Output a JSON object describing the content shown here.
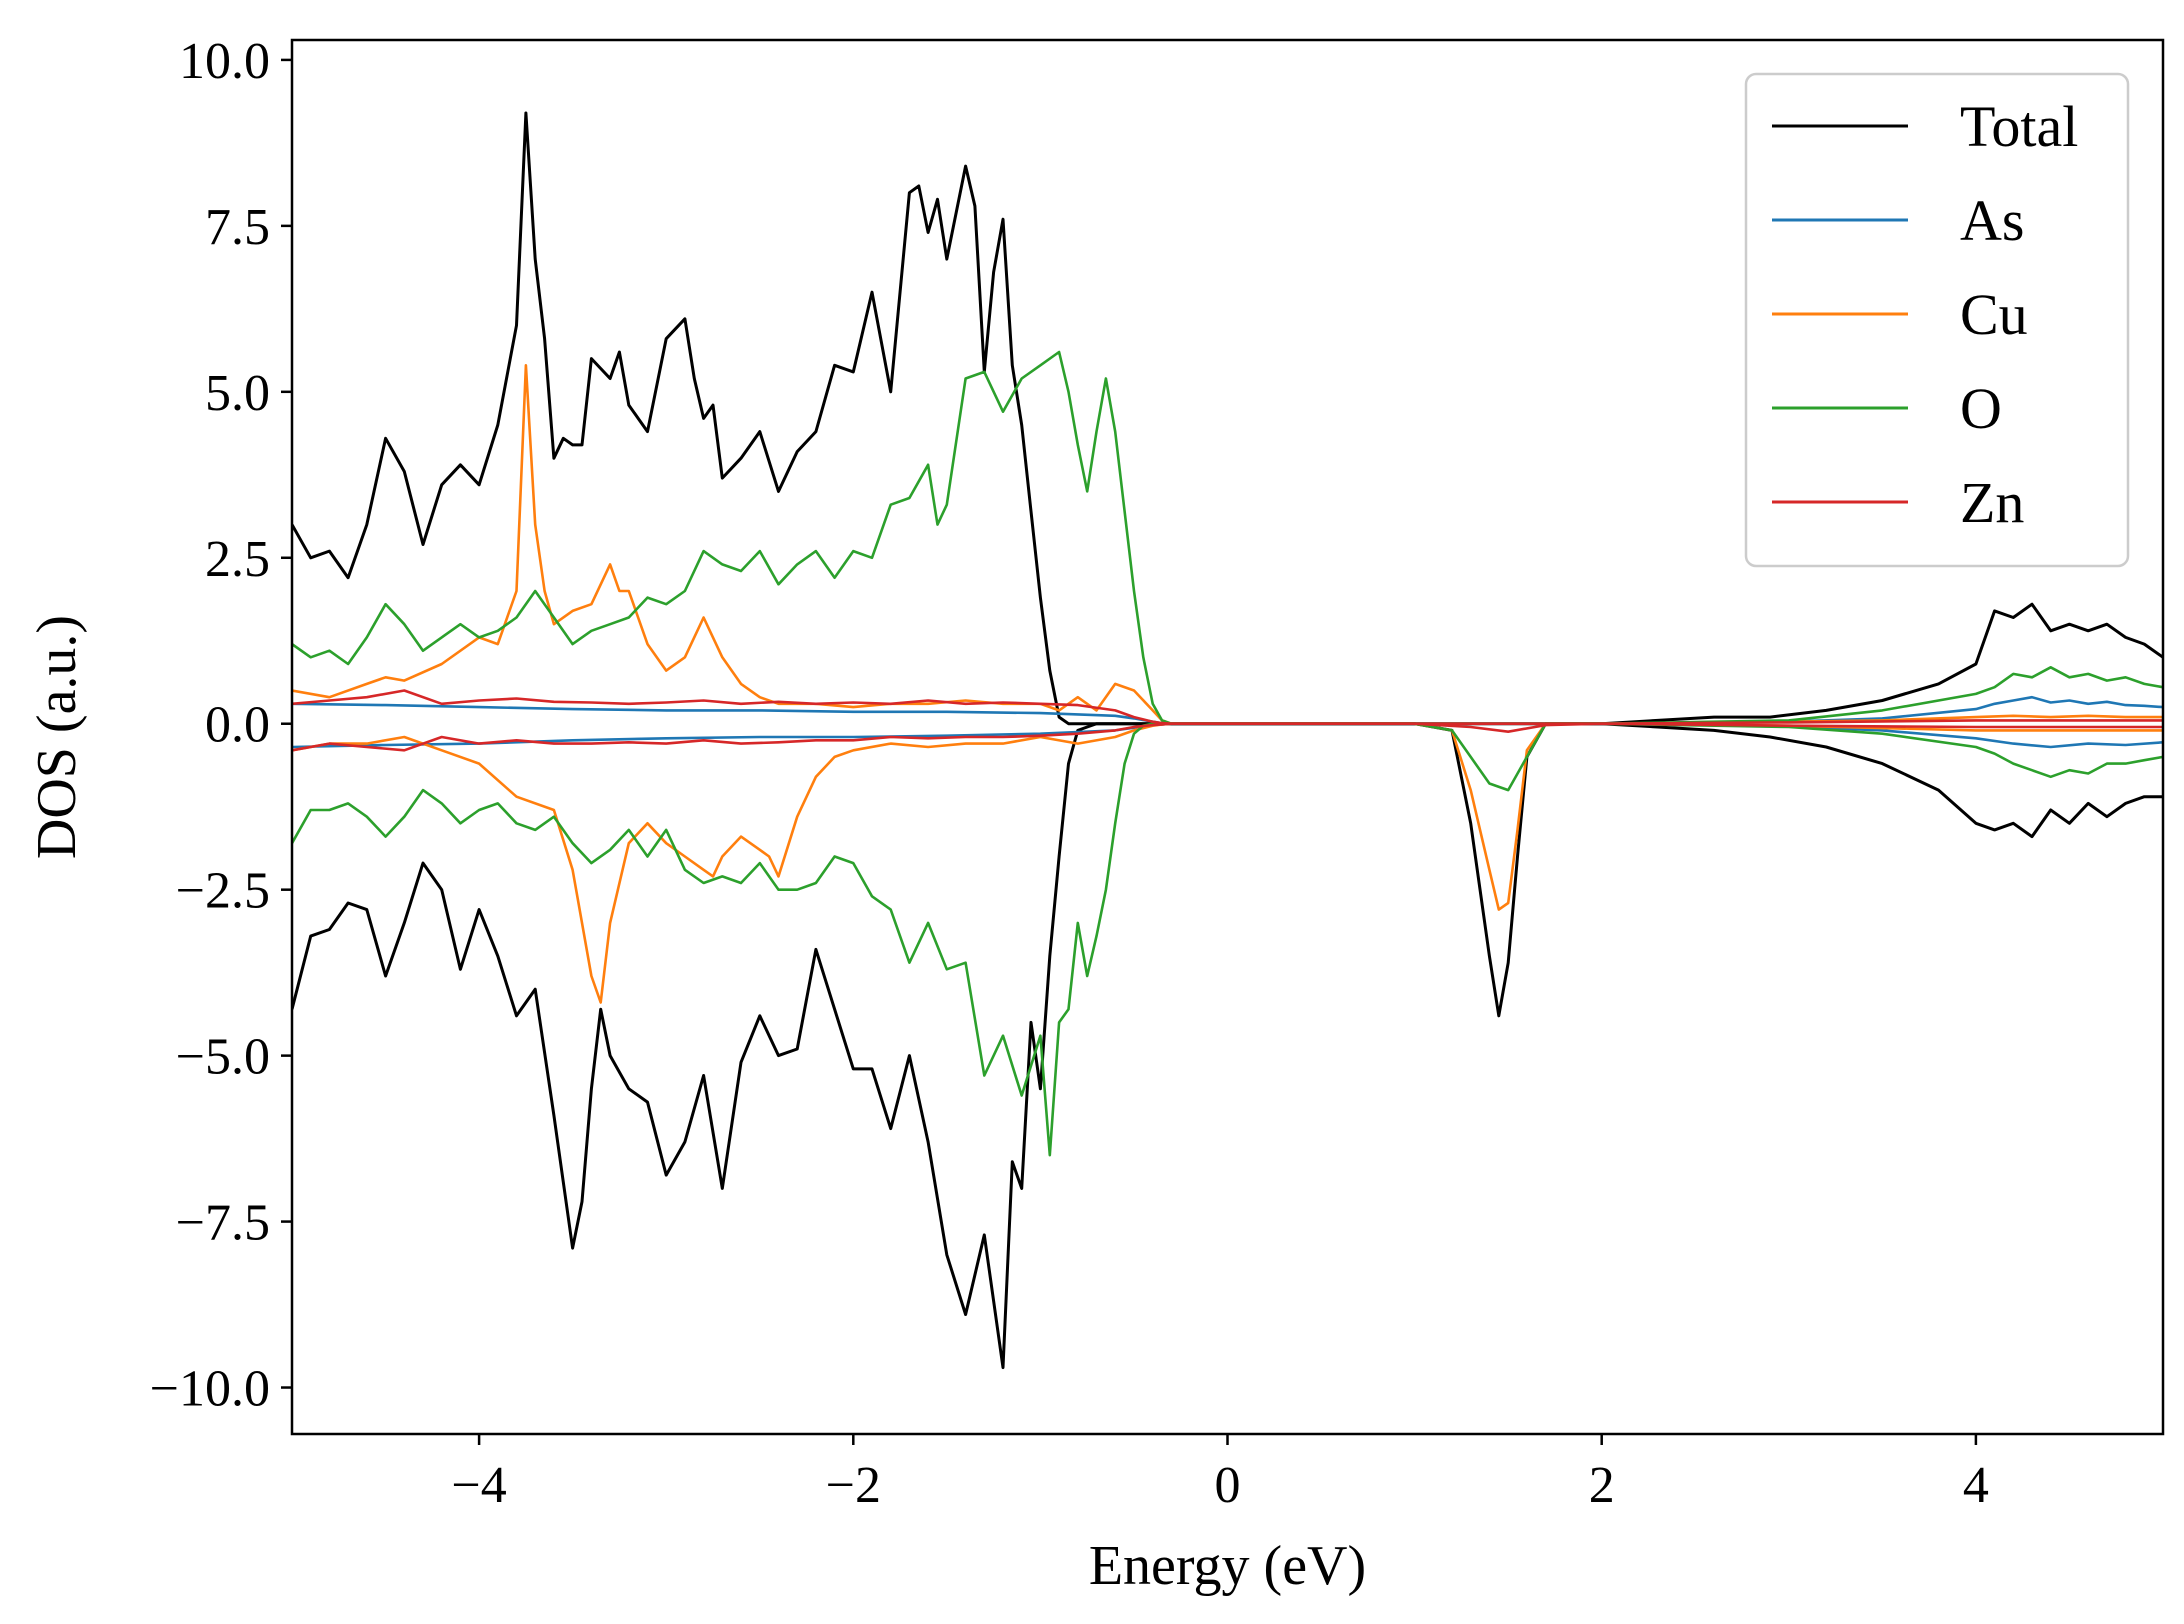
{
  "chart_data": {
    "type": "line",
    "title": "",
    "xlabel": "Energy (eV)",
    "ylabel": "DOS (a.u.)",
    "xlim": [
      -5,
      5
    ],
    "ylim": [
      -10.7,
      10.3
    ],
    "xticks": [
      -4,
      -2,
      0,
      2,
      4
    ],
    "xtick_labels": [
      "−4",
      "−2",
      "0",
      "2",
      "4"
    ],
    "yticks": [
      -10,
      -7.5,
      -5,
      -2.5,
      0,
      2.5,
      5,
      7.5,
      10
    ],
    "ytick_labels": [
      "−10.0",
      "−7.5",
      "−5.0",
      "−2.5",
      "0.0",
      "2.5",
      "5.0",
      "7.5",
      "10.0"
    ],
    "grid": false,
    "legend_position": "top-right",
    "colors": {
      "Total": "#000000",
      "As": "#1f77b4",
      "Cu": "#ff7f0e",
      "O": "#2ca02c",
      "Zn": "#d62728"
    },
    "series": [
      {
        "name": "Total",
        "spin": "up",
        "x": [
          -5.0,
          -4.9,
          -4.8,
          -4.7,
          -4.6,
          -4.5,
          -4.4,
          -4.3,
          -4.2,
          -4.1,
          -4.0,
          -3.9,
          -3.8,
          -3.75,
          -3.7,
          -3.65,
          -3.6,
          -3.55,
          -3.5,
          -3.45,
          -3.4,
          -3.3,
          -3.25,
          -3.2,
          -3.1,
          -3.0,
          -2.9,
          -2.85,
          -2.8,
          -2.75,
          -2.7,
          -2.6,
          -2.5,
          -2.4,
          -2.3,
          -2.2,
          -2.1,
          -2.0,
          -1.9,
          -1.8,
          -1.7,
          -1.65,
          -1.6,
          -1.55,
          -1.5,
          -1.45,
          -1.4,
          -1.35,
          -1.3,
          -1.25,
          -1.2,
          -1.15,
          -1.1,
          -1.05,
          -1.0,
          -0.95,
          -0.9,
          -0.85,
          -0.8,
          -0.75,
          -0.7,
          -0.65,
          -0.6,
          -0.55,
          -0.5,
          -0.45,
          -0.4,
          -0.35,
          -0.3,
          -0.25,
          -0.2,
          0.0,
          1.0,
          2.0,
          2.3,
          2.6,
          2.9,
          3.2,
          3.5,
          3.8,
          4.0,
          4.1,
          4.2,
          4.3,
          4.4,
          4.5,
          4.6,
          4.7,
          4.8,
          4.9,
          5.0
        ],
        "y": [
          3.0,
          2.5,
          2.6,
          2.2,
          3.0,
          4.3,
          3.8,
          2.7,
          3.6,
          3.9,
          3.6,
          4.5,
          6.0,
          9.2,
          7.0,
          5.8,
          4.0,
          4.3,
          4.2,
          4.2,
          5.5,
          5.2,
          5.6,
          4.8,
          4.4,
          5.8,
          6.1,
          5.2,
          4.6,
          4.8,
          3.7,
          4.0,
          4.4,
          3.5,
          4.1,
          4.4,
          5.4,
          5.3,
          6.5,
          5.0,
          8.0,
          8.1,
          7.4,
          7.9,
          7.0,
          7.7,
          8.4,
          7.8,
          5.3,
          6.8,
          7.6,
          5.4,
          4.5,
          3.2,
          1.9,
          0.8,
          0.1,
          0.0,
          0.0,
          0.0,
          0.0,
          0.0,
          0.0,
          0.0,
          0.0,
          0.0,
          0.0,
          0.0,
          0.0,
          0.0,
          0.0,
          0.0,
          0.0,
          0.0,
          0.05,
          0.1,
          0.1,
          0.2,
          0.35,
          0.6,
          0.9,
          1.7,
          1.6,
          1.8,
          1.4,
          1.5,
          1.4,
          1.5,
          1.3,
          1.2,
          1.0
        ]
      },
      {
        "name": "Total",
        "spin": "down",
        "x": [
          -5.0,
          -4.9,
          -4.8,
          -4.7,
          -4.6,
          -4.5,
          -4.4,
          -4.3,
          -4.2,
          -4.1,
          -4.0,
          -3.9,
          -3.8,
          -3.7,
          -3.6,
          -3.5,
          -3.45,
          -3.4,
          -3.35,
          -3.3,
          -3.2,
          -3.1,
          -3.0,
          -2.9,
          -2.8,
          -2.7,
          -2.6,
          -2.5,
          -2.4,
          -2.3,
          -2.2,
          -2.1,
          -2.0,
          -1.9,
          -1.8,
          -1.7,
          -1.6,
          -1.5,
          -1.4,
          -1.3,
          -1.2,
          -1.15,
          -1.1,
          -1.05,
          -1.0,
          -0.95,
          -0.9,
          -0.85,
          -0.8,
          -0.75,
          -0.7,
          -0.65,
          -0.6,
          -0.55,
          -0.5,
          -0.45,
          -0.4,
          -0.35,
          -0.3,
          -0.25,
          -0.2,
          0.0,
          1.0,
          1.2,
          1.3,
          1.4,
          1.45,
          1.5,
          1.55,
          1.6,
          1.7,
          2.0,
          2.3,
          2.6,
          2.9,
          3.2,
          3.5,
          3.8,
          4.0,
          4.1,
          4.2,
          4.3,
          4.4,
          4.5,
          4.6,
          4.7,
          4.8,
          4.9,
          5.0
        ],
        "y": [
          -4.3,
          -3.2,
          -3.1,
          -2.7,
          -2.8,
          -3.8,
          -3.0,
          -2.1,
          -2.5,
          -3.7,
          -2.8,
          -3.5,
          -4.4,
          -4.0,
          -5.9,
          -7.9,
          -7.2,
          -5.5,
          -4.3,
          -5.0,
          -5.5,
          -5.7,
          -6.8,
          -6.3,
          -5.3,
          -7.0,
          -5.1,
          -4.4,
          -5.0,
          -4.9,
          -3.4,
          -4.3,
          -5.2,
          -5.2,
          -6.1,
          -5.0,
          -6.3,
          -8.0,
          -8.9,
          -7.7,
          -9.7,
          -6.6,
          -7.0,
          -4.5,
          -5.5,
          -3.5,
          -2.0,
          -0.6,
          -0.1,
          -0.05,
          0.0,
          0.0,
          0.0,
          0.0,
          0.0,
          0.0,
          0.0,
          0.0,
          0.0,
          0.0,
          0.0,
          0.0,
          0.0,
          -0.1,
          -1.5,
          -3.5,
          -4.4,
          -3.6,
          -2.0,
          -0.5,
          0.0,
          0.0,
          -0.05,
          -0.1,
          -0.2,
          -0.35,
          -0.6,
          -1.0,
          -1.5,
          -1.6,
          -1.5,
          -1.7,
          -1.3,
          -1.5,
          -1.2,
          -1.4,
          -1.2,
          -1.1,
          -1.1
        ]
      },
      {
        "name": "As",
        "spin": "up",
        "x": [
          -5.0,
          -4.5,
          -4.0,
          -3.5,
          -3.0,
          -2.5,
          -2.0,
          -1.5,
          -1.0,
          -0.6,
          -0.5,
          -0.4,
          -0.35,
          -0.3,
          0.0,
          1.0,
          2.0,
          3.0,
          3.5,
          4.0,
          4.1,
          4.2,
          4.3,
          4.4,
          4.5,
          4.6,
          4.7,
          4.8,
          4.9,
          5.0
        ],
        "y": [
          0.3,
          0.28,
          0.25,
          0.22,
          0.2,
          0.2,
          0.18,
          0.18,
          0.16,
          0.12,
          0.08,
          0.03,
          0.01,
          0.0,
          0.0,
          0.0,
          0.0,
          0.03,
          0.08,
          0.22,
          0.3,
          0.35,
          0.4,
          0.32,
          0.35,
          0.3,
          0.33,
          0.28,
          0.27,
          0.25
        ]
      },
      {
        "name": "As",
        "spin": "down",
        "x": [
          -5.0,
          -4.5,
          -4.0,
          -3.5,
          -3.0,
          -2.5,
          -2.0,
          -1.5,
          -1.0,
          -0.6,
          -0.5,
          -0.4,
          -0.35,
          -0.3,
          0.0,
          1.0,
          2.0,
          3.0,
          3.5,
          4.0,
          4.2,
          4.4,
          4.6,
          4.8,
          5.0
        ],
        "y": [
          -0.35,
          -0.32,
          -0.3,
          -0.25,
          -0.22,
          -0.2,
          -0.2,
          -0.18,
          -0.15,
          -0.1,
          -0.06,
          -0.02,
          -0.01,
          0.0,
          0.0,
          0.0,
          0.0,
          -0.04,
          -0.1,
          -0.22,
          -0.3,
          -0.35,
          -0.3,
          -0.32,
          -0.28
        ]
      },
      {
        "name": "Cu",
        "spin": "up",
        "x": [
          -5.0,
          -4.8,
          -4.6,
          -4.5,
          -4.4,
          -4.2,
          -4.0,
          -3.9,
          -3.8,
          -3.75,
          -3.7,
          -3.65,
          -3.6,
          -3.5,
          -3.4,
          -3.3,
          -3.25,
          -3.2,
          -3.1,
          -3.0,
          -2.9,
          -2.8,
          -2.7,
          -2.6,
          -2.5,
          -2.4,
          -2.2,
          -2.0,
          -1.8,
          -1.6,
          -1.4,
          -1.2,
          -1.0,
          -0.9,
          -0.8,
          -0.7,
          -0.6,
          -0.5,
          -0.4,
          -0.35,
          -0.3,
          0.0,
          1.0,
          2.0,
          3.0,
          3.5,
          4.0,
          4.2,
          4.4,
          4.6,
          4.8,
          5.0
        ],
        "y": [
          0.5,
          0.4,
          0.6,
          0.7,
          0.65,
          0.9,
          1.3,
          1.2,
          2.0,
          5.4,
          3.0,
          2.0,
          1.5,
          1.7,
          1.8,
          2.4,
          2.0,
          2.0,
          1.2,
          0.8,
          1.0,
          1.6,
          1.0,
          0.6,
          0.4,
          0.3,
          0.3,
          0.25,
          0.3,
          0.3,
          0.35,
          0.3,
          0.3,
          0.2,
          0.4,
          0.2,
          0.6,
          0.5,
          0.2,
          0.05,
          0.0,
          0.0,
          0.0,
          0.0,
          0.03,
          0.05,
          0.1,
          0.12,
          0.1,
          0.12,
          0.1,
          0.1
        ]
      },
      {
        "name": "Cu",
        "spin": "down",
        "x": [
          -5.0,
          -4.8,
          -4.6,
          -4.4,
          -4.2,
          -4.0,
          -3.8,
          -3.6,
          -3.5,
          -3.4,
          -3.35,
          -3.3,
          -3.2,
          -3.1,
          -3.0,
          -2.9,
          -2.8,
          -2.75,
          -2.7,
          -2.6,
          -2.5,
          -2.45,
          -2.4,
          -2.3,
          -2.2,
          -2.1,
          -2.0,
          -1.8,
          -1.6,
          -1.4,
          -1.2,
          -1.0,
          -0.8,
          -0.6,
          -0.5,
          -0.4,
          -0.35,
          -0.3,
          0.0,
          1.0,
          1.2,
          1.3,
          1.4,
          1.45,
          1.5,
          1.55,
          1.6,
          1.7,
          2.0,
          3.0,
          4.0,
          4.5,
          5.0
        ],
        "y": [
          -0.4,
          -0.3,
          -0.3,
          -0.2,
          -0.4,
          -0.6,
          -1.1,
          -1.3,
          -2.2,
          -3.8,
          -4.2,
          -3.0,
          -1.8,
          -1.5,
          -1.8,
          -2.0,
          -2.2,
          -2.3,
          -2.0,
          -1.7,
          -1.9,
          -2.0,
          -2.3,
          -1.4,
          -0.8,
          -0.5,
          -0.4,
          -0.3,
          -0.35,
          -0.3,
          -0.3,
          -0.2,
          -0.3,
          -0.2,
          -0.1,
          -0.03,
          -0.01,
          0.0,
          0.0,
          0.0,
          -0.1,
          -1.0,
          -2.2,
          -2.8,
          -2.7,
          -1.6,
          -0.4,
          0.0,
          0.0,
          -0.03,
          -0.1,
          -0.1,
          -0.1
        ]
      },
      {
        "name": "O",
        "spin": "up",
        "x": [
          -5.0,
          -4.9,
          -4.8,
          -4.7,
          -4.6,
          -4.5,
          -4.4,
          -4.3,
          -4.2,
          -4.1,
          -4.0,
          -3.9,
          -3.8,
          -3.7,
          -3.6,
          -3.5,
          -3.4,
          -3.3,
          -3.2,
          -3.1,
          -3.0,
          -2.9,
          -2.8,
          -2.7,
          -2.6,
          -2.5,
          -2.4,
          -2.3,
          -2.2,
          -2.1,
          -2.0,
          -1.9,
          -1.8,
          -1.7,
          -1.6,
          -1.55,
          -1.5,
          -1.4,
          -1.3,
          -1.2,
          -1.1,
          -1.0,
          -0.9,
          -0.85,
          -0.8,
          -0.75,
          -0.7,
          -0.65,
          -0.6,
          -0.55,
          -0.5,
          -0.45,
          -0.4,
          -0.35,
          -0.3,
          -0.25,
          -0.2,
          0.0,
          1.0,
          2.0,
          3.0,
          3.5,
          4.0,
          4.1,
          4.2,
          4.3,
          4.4,
          4.5,
          4.6,
          4.7,
          4.8,
          4.9,
          5.0
        ],
        "y": [
          1.2,
          1.0,
          1.1,
          0.9,
          1.3,
          1.8,
          1.5,
          1.1,
          1.3,
          1.5,
          1.3,
          1.4,
          1.6,
          2.0,
          1.6,
          1.2,
          1.4,
          1.5,
          1.6,
          1.9,
          1.8,
          2.0,
          2.6,
          2.4,
          2.3,
          2.6,
          2.1,
          2.4,
          2.6,
          2.2,
          2.6,
          2.5,
          3.3,
          3.4,
          3.9,
          3.0,
          3.3,
          5.2,
          5.3,
          4.7,
          5.2,
          5.4,
          5.6,
          5.0,
          4.2,
          3.5,
          4.4,
          5.2,
          4.4,
          3.2,
          2.0,
          1.0,
          0.3,
          0.05,
          0.0,
          0.0,
          0.0,
          0.0,
          0.0,
          0.0,
          0.05,
          0.2,
          0.45,
          0.55,
          0.75,
          0.7,
          0.85,
          0.7,
          0.75,
          0.65,
          0.7,
          0.6,
          0.55
        ]
      },
      {
        "name": "O",
        "spin": "down",
        "x": [
          -5.0,
          -4.9,
          -4.8,
          -4.7,
          -4.6,
          -4.5,
          -4.4,
          -4.3,
          -4.2,
          -4.1,
          -4.0,
          -3.9,
          -3.8,
          -3.7,
          -3.6,
          -3.5,
          -3.4,
          -3.3,
          -3.2,
          -3.1,
          -3.0,
          -2.9,
          -2.8,
          -2.7,
          -2.6,
          -2.5,
          -2.4,
          -2.3,
          -2.2,
          -2.1,
          -2.0,
          -1.9,
          -1.8,
          -1.7,
          -1.6,
          -1.5,
          -1.4,
          -1.3,
          -1.2,
          -1.1,
          -1.0,
          -0.95,
          -0.9,
          -0.85,
          -0.8,
          -0.75,
          -0.7,
          -0.65,
          -0.6,
          -0.55,
          -0.5,
          -0.45,
          -0.4,
          -0.35,
          -0.3,
          -0.25,
          -0.2,
          0.0,
          1.0,
          1.2,
          1.3,
          1.4,
          1.5,
          1.6,
          1.7,
          2.0,
          3.0,
          3.5,
          4.0,
          4.1,
          4.2,
          4.3,
          4.4,
          4.5,
          4.6,
          4.7,
          4.8,
          4.9,
          5.0
        ],
        "y": [
          -1.8,
          -1.3,
          -1.3,
          -1.2,
          -1.4,
          -1.7,
          -1.4,
          -1.0,
          -1.2,
          -1.5,
          -1.3,
          -1.2,
          -1.5,
          -1.6,
          -1.4,
          -1.8,
          -2.1,
          -1.9,
          -1.6,
          -2.0,
          -1.6,
          -2.2,
          -2.4,
          -2.3,
          -2.4,
          -2.1,
          -2.5,
          -2.5,
          -2.4,
          -2.0,
          -2.1,
          -2.6,
          -2.8,
          -3.6,
          -3.0,
          -3.7,
          -3.6,
          -5.3,
          -4.7,
          -5.6,
          -4.7,
          -6.5,
          -4.5,
          -4.3,
          -3.0,
          -3.8,
          -3.2,
          -2.5,
          -1.5,
          -0.6,
          -0.15,
          -0.03,
          0.0,
          0.0,
          0.0,
          0.0,
          0.0,
          0.0,
          0.0,
          -0.1,
          -0.5,
          -0.9,
          -1.0,
          -0.5,
          0.0,
          0.0,
          -0.05,
          -0.15,
          -0.35,
          -0.45,
          -0.6,
          -0.7,
          -0.8,
          -0.7,
          -0.75,
          -0.6,
          -0.6,
          -0.55,
          -0.5
        ]
      },
      {
        "name": "Zn",
        "spin": "up",
        "x": [
          -5.0,
          -4.8,
          -4.6,
          -4.4,
          -4.2,
          -4.0,
          -3.8,
          -3.6,
          -3.4,
          -3.2,
          -3.0,
          -2.8,
          -2.6,
          -2.4,
          -2.2,
          -2.0,
          -1.8,
          -1.6,
          -1.4,
          -1.2,
          -1.0,
          -0.8,
          -0.6,
          -0.5,
          -0.4,
          -0.35,
          -0.3,
          0.0,
          1.0,
          2.0,
          3.0,
          4.0,
          5.0
        ],
        "y": [
          0.3,
          0.35,
          0.4,
          0.5,
          0.3,
          0.35,
          0.38,
          0.33,
          0.32,
          0.3,
          0.32,
          0.35,
          0.3,
          0.33,
          0.3,
          0.32,
          0.3,
          0.35,
          0.3,
          0.32,
          0.3,
          0.28,
          0.2,
          0.1,
          0.03,
          0.01,
          0.0,
          0.0,
          0.0,
          0.0,
          0.02,
          0.05,
          0.05
        ]
      },
      {
        "name": "Zn",
        "spin": "down",
        "x": [
          -5.0,
          -4.8,
          -4.6,
          -4.4,
          -4.2,
          -4.0,
          -3.8,
          -3.6,
          -3.4,
          -3.2,
          -3.0,
          -2.8,
          -2.6,
          -2.4,
          -2.2,
          -2.0,
          -1.8,
          -1.6,
          -1.4,
          -1.2,
          -1.0,
          -0.8,
          -0.6,
          -0.5,
          -0.4,
          -0.35,
          -0.3,
          0.0,
          1.0,
          1.3,
          1.5,
          1.7,
          2.0,
          3.0,
          4.0,
          5.0
        ],
        "y": [
          -0.4,
          -0.3,
          -0.35,
          -0.4,
          -0.2,
          -0.3,
          -0.25,
          -0.3,
          -0.3,
          -0.28,
          -0.3,
          -0.25,
          -0.3,
          -0.28,
          -0.25,
          -0.25,
          -0.2,
          -0.22,
          -0.2,
          -0.2,
          -0.18,
          -0.15,
          -0.1,
          -0.05,
          -0.02,
          -0.01,
          0.0,
          0.0,
          0.0,
          -0.05,
          -0.12,
          -0.02,
          0.0,
          -0.03,
          -0.05,
          -0.05
        ]
      }
    ],
    "legend": [
      "Total",
      "As",
      "Cu",
      "O",
      "Zn"
    ]
  }
}
